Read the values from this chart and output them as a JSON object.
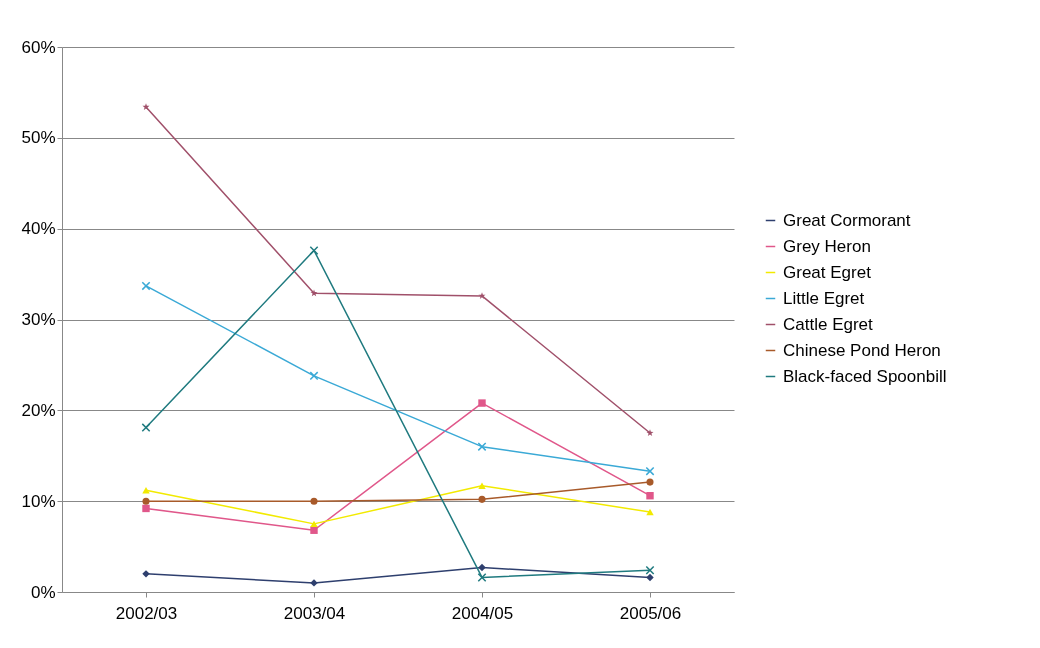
{
  "chart_data": {
    "type": "line",
    "categories": [
      "2002/03",
      "2003/04",
      "2004/05",
      "2005/06"
    ],
    "series": [
      {
        "name": "Great Cormorant",
        "color": "#2e3f6e",
        "marker": "diamond",
        "values": [
          2.0,
          1.0,
          2.7,
          1.6
        ]
      },
      {
        "name": "Grey Heron",
        "color": "#e0578a",
        "marker": "square",
        "values": [
          9.2,
          6.8,
          20.8,
          10.6
        ]
      },
      {
        "name": "Great Egret",
        "color": "#f2ea00",
        "marker": "triangle",
        "values": [
          11.2,
          7.5,
          11.7,
          8.8
        ]
      },
      {
        "name": "Little Egret",
        "color": "#3aa9d6",
        "marker": "cross",
        "values": [
          33.7,
          23.8,
          16.0,
          13.3
        ]
      },
      {
        "name": "Cattle Egret",
        "color": "#a0506a",
        "marker": "star",
        "values": [
          53.4,
          32.9,
          32.6,
          17.5
        ]
      },
      {
        "name": "Chinese Pond Heron",
        "color": "#a85a2a",
        "marker": "circle",
        "values": [
          10.0,
          10.0,
          10.2,
          12.1
        ]
      },
      {
        "name": "Black-faced Spoonbill",
        "color": "#1f7a7f",
        "marker": "cross",
        "values": [
          18.1,
          37.6,
          1.6,
          2.4
        ]
      }
    ],
    "ylim": [
      0,
      60
    ],
    "yticks": [
      {
        "value": 0,
        "label": "0%"
      },
      {
        "value": 10,
        "label": "10%"
      },
      {
        "value": 20,
        "label": "20%"
      },
      {
        "value": 30,
        "label": "30%"
      },
      {
        "value": 40,
        "label": "40%"
      },
      {
        "value": 50,
        "label": "50%"
      },
      {
        "value": 60,
        "label": "60%"
      }
    ],
    "grid": "y",
    "legend": "right",
    "line_style": "solid"
  }
}
